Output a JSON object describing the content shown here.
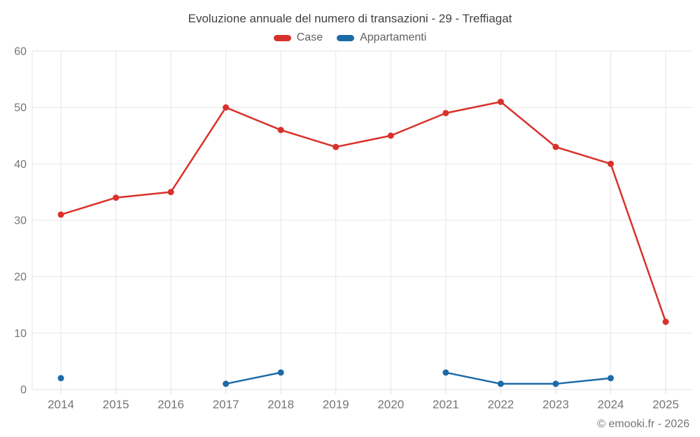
{
  "footer": {
    "credit": "© emooki.fr - 2026"
  },
  "chart_data": {
    "type": "line",
    "title": "Evoluzione annuale del numero di transazioni - 29 - Treffiagat",
    "categories": [
      "2014",
      "2015",
      "2016",
      "2017",
      "2018",
      "2019",
      "2020",
      "2021",
      "2022",
      "2023",
      "2024",
      "2025"
    ],
    "series": [
      {
        "name": "Case",
        "color": "#d8312b",
        "values": [
          31,
          34,
          35,
          50,
          46,
          43,
          45,
          49,
          51,
          43,
          40,
          12
        ]
      },
      {
        "name": "Appartamenti",
        "color": "#1b6ba6",
        "values": [
          2,
          null,
          null,
          1,
          3,
          null,
          null,
          3,
          1,
          1,
          2,
          null
        ]
      }
    ],
    "ylim": [
      0,
      60
    ],
    "yticks": [
      0,
      10,
      20,
      30,
      40,
      50,
      60
    ],
    "xlabel": "",
    "ylabel": "",
    "grid": true,
    "legend_position": "top",
    "colors": {
      "grid_line": "#e6e6e6",
      "axis_tick": "#dcdcdc",
      "axis_label": "#757575",
      "title_text": "#424242",
      "legend_text": "#616161"
    }
  }
}
